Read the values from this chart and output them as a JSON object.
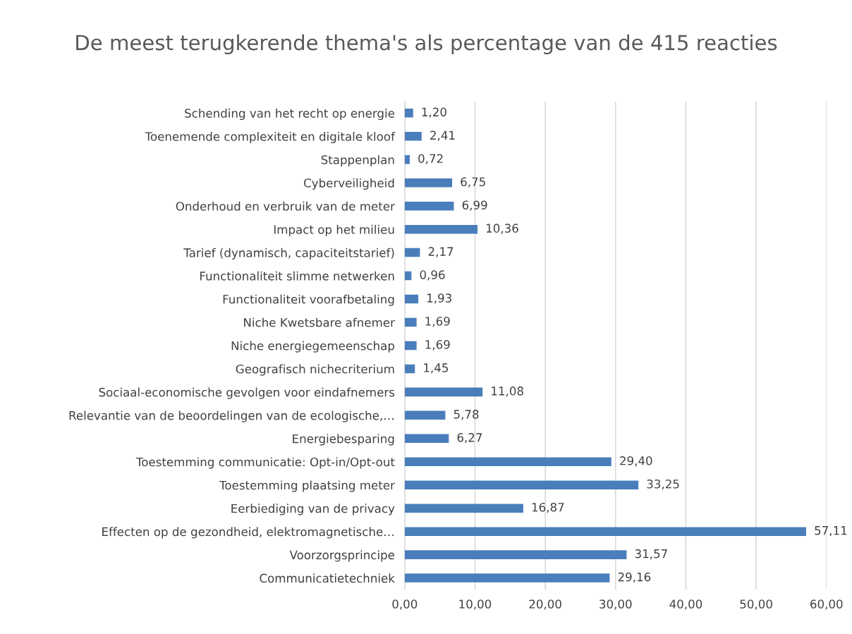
{
  "chart_data": {
    "type": "bar",
    "orientation": "horizontal",
    "title": "De meest terugkerende thema's als percentage van de 415 reacties",
    "categories": [
      "Schending van het recht op energie",
      "Toenemende complexiteit en digitale kloof",
      "Stappenplan",
      "Cyberveiligheid",
      "Onderhoud en verbruik van de meter",
      "Impact op het milieu",
      "Tarief (dynamisch, capaciteitstarief)",
      "Functionaliteit slimme netwerken",
      "Functionaliteit voorafbetaling",
      "Niche Kwetsbare afnemer",
      "Niche energiegemeenschap",
      "Geografisch nichecriterium",
      "Sociaal-economische gevolgen voor eindafnemers",
      "Relevantie van de beoordelingen van de ecologische,…",
      "Energiebesparing",
      "Toestemming communicatie: Opt-in/Opt-out",
      "Toestemming plaatsing meter",
      "Eerbiediging van de privacy",
      "Effecten op de gezondheid, elektromagnetische…",
      "Voorzorgsprincipe",
      "Communicatietechniek"
    ],
    "values": [
      1.2,
      2.41,
      0.72,
      6.75,
      6.99,
      10.36,
      2.17,
      0.96,
      1.93,
      1.69,
      1.69,
      1.45,
      11.08,
      5.78,
      6.27,
      29.4,
      33.25,
      16.87,
      57.11,
      31.57,
      29.16
    ],
    "value_labels": [
      "1,20",
      "2,41",
      "0,72",
      "6,75",
      "6,99",
      "10,36",
      "2,17",
      "0,96",
      "1,93",
      "1,69",
      "1,69",
      "1,45",
      "11,08",
      "5,78",
      "6,27",
      "29,40",
      "33,25",
      "16,87",
      "57,11",
      "31,57",
      "29,16"
    ],
    "color": "#4a7ebb",
    "xlim": [
      0,
      60
    ],
    "xticks": [
      {
        "value": 0,
        "label": "0,00"
      },
      {
        "value": 10,
        "label": "10,00"
      },
      {
        "value": 20,
        "label": "20,00"
      },
      {
        "value": 30,
        "label": "30,00"
      },
      {
        "value": 40,
        "label": "40,00"
      },
      {
        "value": 50,
        "label": "50,00"
      },
      {
        "value": 60,
        "label": "60,00"
      }
    ],
    "grid": "x",
    "legend": false
  }
}
